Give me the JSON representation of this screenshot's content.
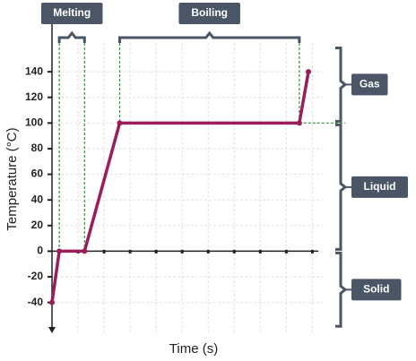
{
  "chart_data": {
    "type": "line",
    "x_label": "Time (s)",
    "y_label": "Temperature (°C)",
    "x": [
      0,
      0.28,
      1.25,
      2.6,
      9.5,
      9.85
    ],
    "values": [
      -40,
      0,
      0,
      100,
      100,
      140
    ],
    "color": "#9b1d5a",
    "xlim": [
      0,
      10.4
    ],
    "xticks": [
      1,
      2,
      3,
      4,
      5,
      6,
      7,
      8,
      9,
      10
    ],
    "ylim": [
      -64,
      182
    ],
    "yticks": [
      -40,
      -20,
      0,
      20,
      40,
      60,
      80,
      100,
      120,
      140
    ],
    "grid": true,
    "phases": [
      {
        "label": "Melting",
        "x": [
          0.28,
          1.25
        ]
      },
      {
        "label": "Boiling",
        "x": [
          2.6,
          9.5
        ]
      }
    ],
    "states": [
      {
        "label": "Gas",
        "y": [
          100,
          160
        ]
      },
      {
        "label": "Liquid",
        "y": [
          0,
          100
        ]
      },
      {
        "label": "Solid",
        "y": [
          -60,
          0
        ]
      }
    ]
  }
}
